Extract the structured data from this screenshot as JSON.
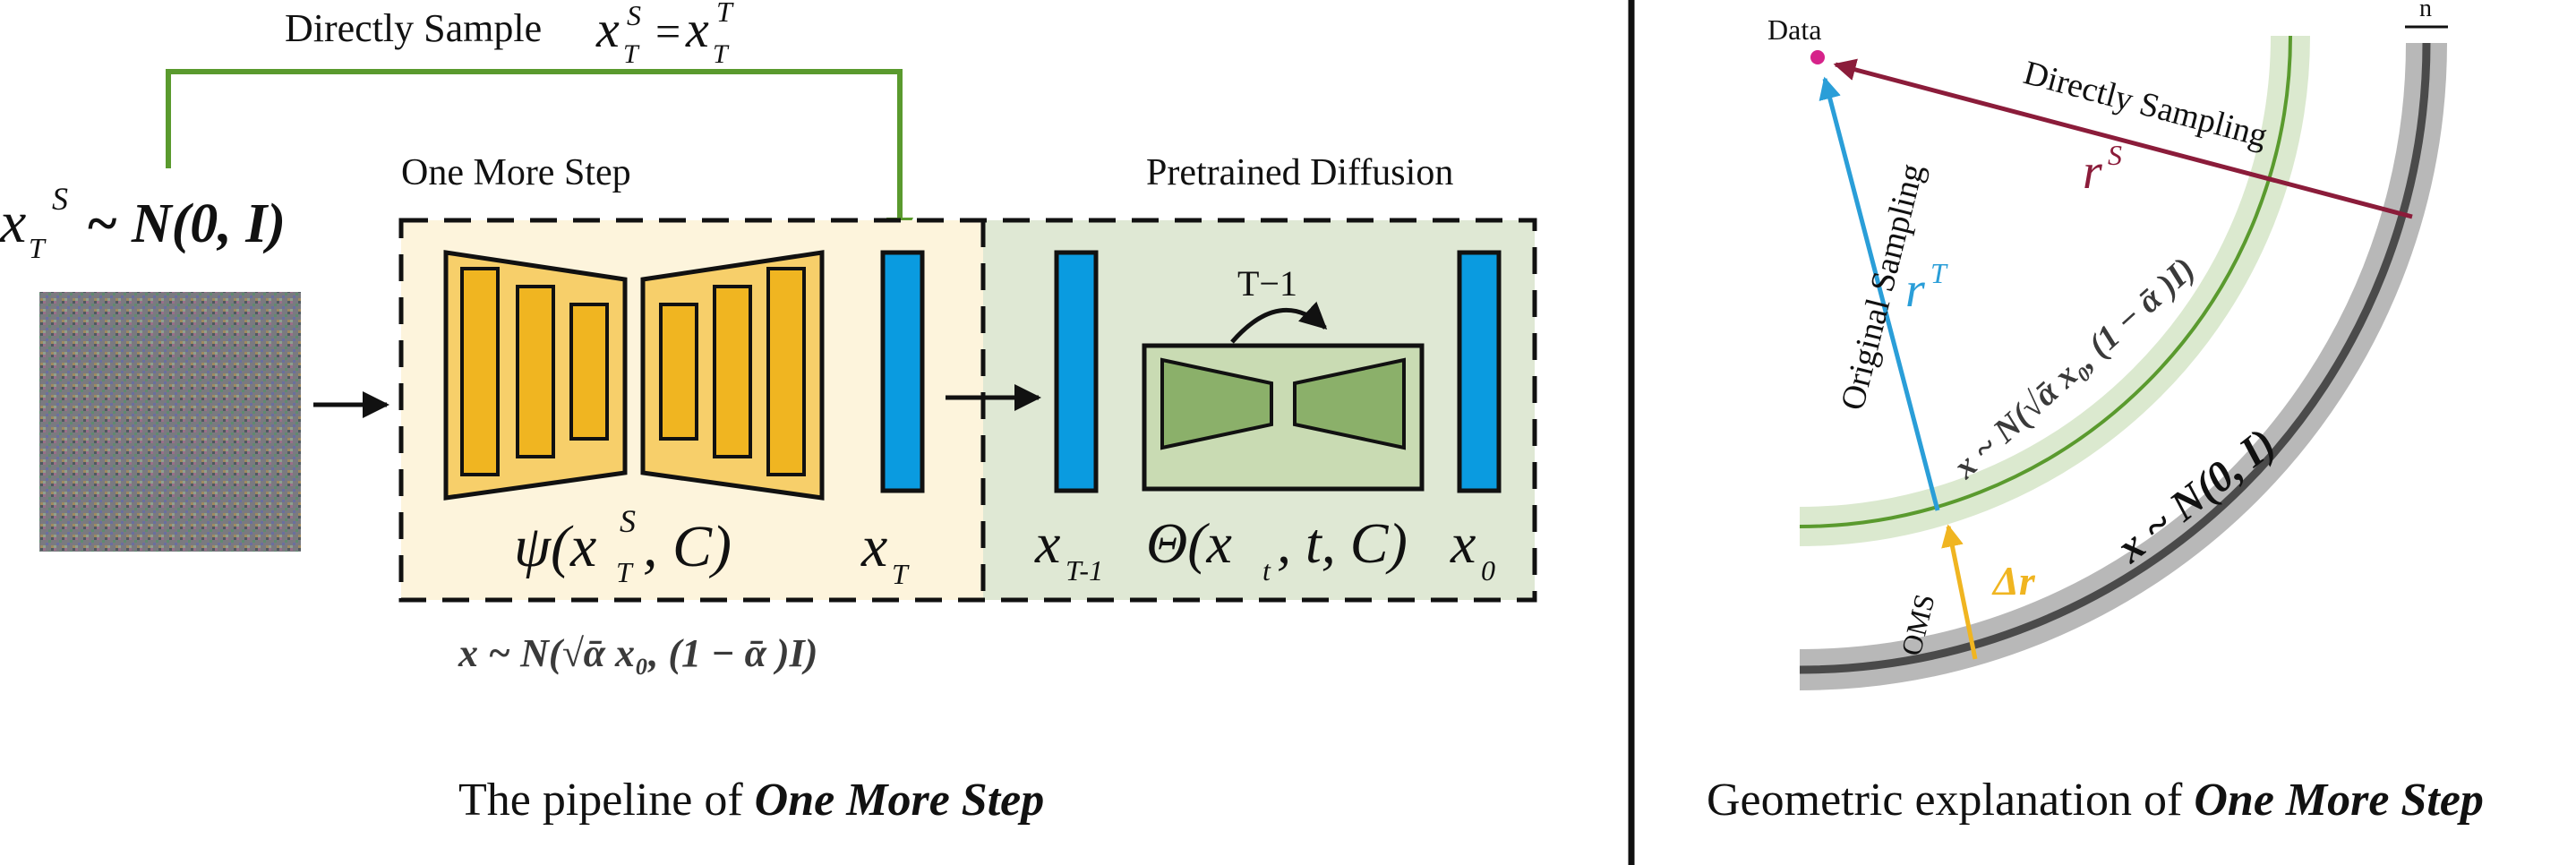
{
  "left_panel": {
    "directly_sample_label": "Directly Sample",
    "directly_sample_eq_lhs": "x",
    "directly_sample_eq_rhs": "x",
    "sub_T": "T",
    "sup_S": "S",
    "sup_T": "T",
    "noise_lhs": "x",
    "noise_dist": "~ N(0, I)",
    "oms_title": "One More Step",
    "pretrained_title": "Pretrained Diffusion",
    "psi_label": "ψ(x",
    "psi_args": ", C)",
    "xT_label": "x",
    "xT1_label": "x",
    "xT1_sub": "T-1",
    "theta_label": "Θ(x",
    "theta_sub": "t",
    "theta_args": ", t, C)",
    "x0_label": "x",
    "x0_sub": "0",
    "loop_label": "T−1",
    "bottom_dist": "x  ~ N(√ᾱ x₀, (1 − ᾱ )I)",
    "caption_prefix": "The pipeline of ",
    "caption_emph": "One More Step"
  },
  "right_panel": {
    "data_label": "Data",
    "n_label": "n",
    "directly_sampling_label": "Directly Sampling",
    "original_sampling_label": "Original Sampling",
    "rs_label": "r",
    "rt_label": "r",
    "oms_label": "OMS",
    "delta_r_label": "Δr",
    "green_band_label": "x  ~ N(√ᾱ x₀, (1 − ᾱ )I)",
    "gray_band_label": "x  ~ N(0, I)",
    "caption_prefix": "Geometric explanation of ",
    "caption_emph": "One More Step"
  },
  "colors": {
    "green_arrow": "#5a9a2e",
    "yellow_fill": "#fdf4dc",
    "green_fill": "#dfe8d4",
    "unet_gold": "#f0b521",
    "latent_blue": "#0a9be0",
    "unet_green": "#8bb06a",
    "maroon": "#8b1c3a",
    "cyan_arrow": "#2a9ed8",
    "orange": "#f0b521",
    "gray_band": "#b8b8b8",
    "dark_gray": "#4a4a4a",
    "light_green_band": "#dbe9cf",
    "data_dot": "#d6238a"
  }
}
